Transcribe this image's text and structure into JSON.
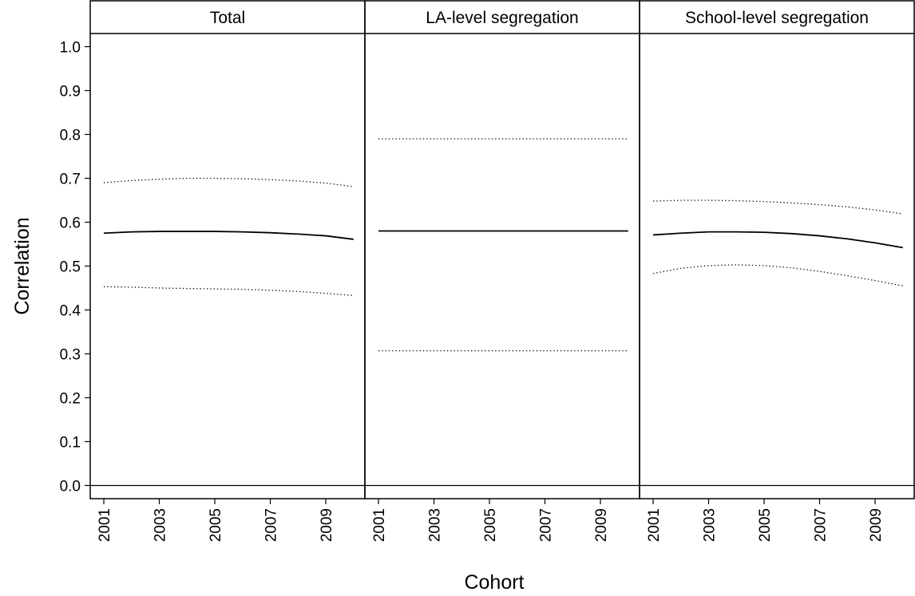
{
  "chart_data": [
    {
      "type": "line",
      "title": "Total",
      "ylabel": "Correlation",
      "x": [
        2001,
        2002,
        2003,
        2004,
        2005,
        2006,
        2007,
        2008,
        2009,
        2010
      ],
      "xlim": [
        2000.51,
        2010.41
      ],
      "xticks": [
        2001,
        2003,
        2005,
        2007,
        2009
      ],
      "ylim": [
        -0.03,
        1.03
      ],
      "yticks": [
        {
          "value": 0,
          "label": "0.0"
        },
        0.1,
        0.2,
        0.3,
        0.4,
        0.5,
        0.6,
        0.7,
        0.8,
        0.9,
        {
          "value": 1,
          "label": "1.0"
        }
      ],
      "hline": 0,
      "series": [
        {
          "color": "#000000",
          "style": "solid",
          "values": [
            0.575,
            0.578,
            0.579,
            0.579,
            0.579,
            0.578,
            0.576,
            0.573,
            0.569,
            0.561
          ]
        },
        {
          "color": "#000000",
          "style": "dotted",
          "values": [
            0.69,
            0.695,
            0.698,
            0.7,
            0.7,
            0.699,
            0.697,
            0.694,
            0.689,
            0.681
          ]
        },
        {
          "color": "#000000",
          "style": "dotted",
          "values": [
            0.453,
            0.452,
            0.45,
            0.449,
            0.448,
            0.447,
            0.445,
            0.442,
            0.438,
            0.433
          ]
        }
      ]
    },
    {
      "type": "line",
      "title": "LA-level segregation",
      "xlabel": "Cohort",
      "x": [
        2001,
        2002,
        2003,
        2004,
        2005,
        2006,
        2007,
        2008,
        2009,
        2010
      ],
      "xlim": [
        2000.51,
        2010.41
      ],
      "xticks": [
        2001,
        2003,
        2005,
        2007,
        2009
      ],
      "ylim": [
        -0.03,
        1.03
      ],
      "hline": 0,
      "series": [
        {
          "color": "#000000",
          "style": "solid",
          "values": [
            0.58,
            0.58,
            0.58,
            0.58,
            0.58,
            0.58,
            0.58,
            0.58,
            0.58,
            0.58
          ]
        },
        {
          "color": "#000000",
          "style": "dotted",
          "values": [
            0.79,
            0.79,
            0.79,
            0.79,
            0.79,
            0.79,
            0.79,
            0.79,
            0.79,
            0.79
          ]
        },
        {
          "color": "#000000",
          "style": "dotted",
          "values": [
            0.307,
            0.307,
            0.307,
            0.307,
            0.307,
            0.307,
            0.307,
            0.307,
            0.307,
            0.307
          ]
        }
      ]
    },
    {
      "type": "line",
      "title": "School-level segregation",
      "x": [
        2001,
        2002,
        2003,
        2004,
        2005,
        2006,
        2007,
        2008,
        2009,
        2010
      ],
      "xlim": [
        2000.51,
        2010.41
      ],
      "xticks": [
        2001,
        2003,
        2005,
        2007,
        2009
      ],
      "ylim": [
        -0.03,
        1.03
      ],
      "hline": 0,
      "series": [
        {
          "color": "#000000",
          "style": "solid",
          "values": [
            0.571,
            0.575,
            0.578,
            0.578,
            0.577,
            0.574,
            0.569,
            0.562,
            0.553,
            0.542
          ]
        },
        {
          "color": "#000000",
          "style": "dotted",
          "values": [
            0.648,
            0.65,
            0.65,
            0.649,
            0.647,
            0.644,
            0.64,
            0.635,
            0.628,
            0.619
          ]
        },
        {
          "color": "#000000",
          "style": "dotted",
          "values": [
            0.483,
            0.495,
            0.501,
            0.503,
            0.501,
            0.496,
            0.488,
            0.478,
            0.467,
            0.455
          ]
        }
      ]
    }
  ]
}
